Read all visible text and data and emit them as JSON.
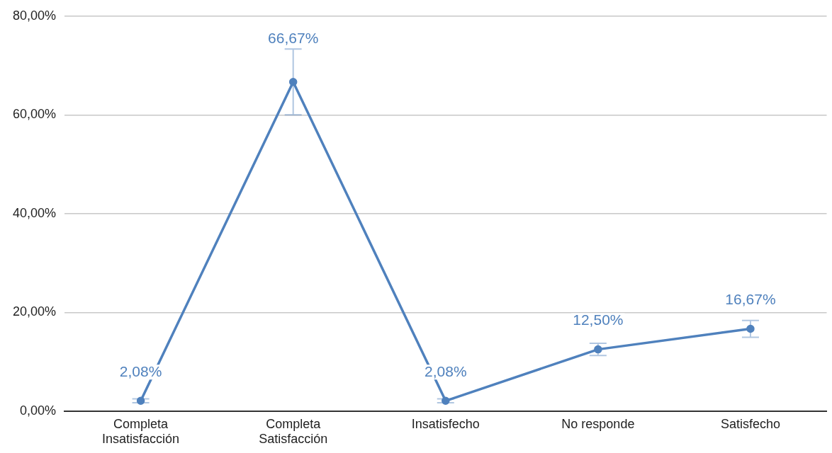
{
  "chart_data": {
    "type": "line",
    "categories": [
      "Completa Insatisfacción",
      "Completa Satisfacción",
      "Insatisfecho",
      "No responde",
      "Satisfecho"
    ],
    "series": [
      {
        "color": "#4f81bd",
        "values": [
          2.08,
          66.67,
          2.08,
          12.5,
          16.67
        ],
        "errors": [
          0.4,
          6.67,
          0.4,
          1.23,
          1.7
        ],
        "value_labels": [
          "2,08%",
          "66,67%",
          "2,08%",
          "12,50%",
          "16,67%"
        ]
      }
    ],
    "ylim": [
      0,
      80
    ],
    "yticks": [
      {
        "value": 0,
        "label": "0,00%"
      },
      {
        "value": 20,
        "label": "20,00%"
      },
      {
        "value": 40,
        "label": "40,00%"
      },
      {
        "value": 60,
        "label": "60,00%"
      },
      {
        "value": 80,
        "label": "80,00%"
      }
    ],
    "grid": "y",
    "legend": false,
    "marker": "circle",
    "line_style": "solid"
  }
}
